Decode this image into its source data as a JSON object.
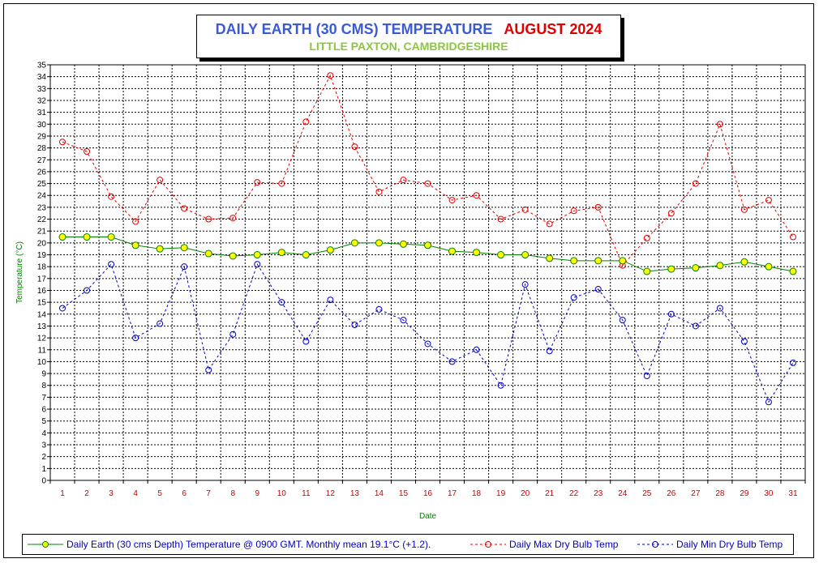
{
  "chart_data": {
    "type": "line",
    "title": "DAILY EARTH (30 CMS) TEMPERATURE",
    "title_month": "AUGUST 2024",
    "subtitle": "LITTLE PAXTON, CAMBRIDGESHIRE",
    "xlabel": "Date",
    "ylabel": "Temperature (°C)",
    "ylim": [
      0,
      35
    ],
    "grid": true,
    "legend_position": "bottom",
    "x": [
      1,
      2,
      3,
      4,
      5,
      6,
      7,
      8,
      9,
      10,
      11,
      12,
      13,
      14,
      15,
      16,
      17,
      18,
      19,
      20,
      21,
      22,
      23,
      24,
      25,
      26,
      27,
      28,
      29,
      30,
      31
    ],
    "series": [
      {
        "name": "Daily Earth (30 cms Depth) Temperature @ 0900 GMT. Monthly mean 19.1°C (+1.2).",
        "color": "#008000",
        "marker_fill": "#ffff00",
        "style": "solid",
        "values": [
          20.5,
          20.5,
          20.5,
          19.8,
          19.5,
          19.6,
          19.1,
          18.9,
          19.0,
          19.2,
          19.0,
          19.4,
          20.0,
          20.0,
          19.9,
          19.8,
          19.3,
          19.2,
          19.0,
          19.0,
          18.7,
          18.5,
          18.5,
          18.5,
          17.6,
          17.8,
          17.9,
          18.1,
          18.4,
          18.0,
          17.6
        ]
      },
      {
        "name": "Daily Max Dry Bulb Temp",
        "color": "#e00000",
        "style": "dashed",
        "values": [
          28.5,
          27.7,
          23.9,
          21.8,
          25.3,
          22.9,
          22.0,
          22.1,
          25.1,
          25.0,
          30.2,
          34.1,
          28.1,
          24.3,
          25.3,
          25.0,
          23.6,
          24.0,
          22.0,
          22.8,
          21.6,
          22.7,
          23.0,
          18.1,
          20.4,
          22.5,
          25.0,
          30.0,
          22.8,
          23.6,
          20.5
        ]
      },
      {
        "name": "Daily Min Dry Bulb Temp",
        "color": "#0000c0",
        "style": "dashed",
        "values": [
          14.5,
          16.0,
          18.2,
          12.0,
          13.2,
          18.0,
          9.3,
          12.3,
          18.2,
          15.0,
          11.7,
          15.2,
          13.1,
          14.4,
          13.5,
          11.5,
          10.0,
          11.0,
          8.0,
          16.5,
          10.9,
          15.4,
          16.1,
          13.5,
          8.8,
          14.0,
          13.0,
          14.5,
          11.7,
          6.6,
          9.9
        ]
      }
    ]
  }
}
